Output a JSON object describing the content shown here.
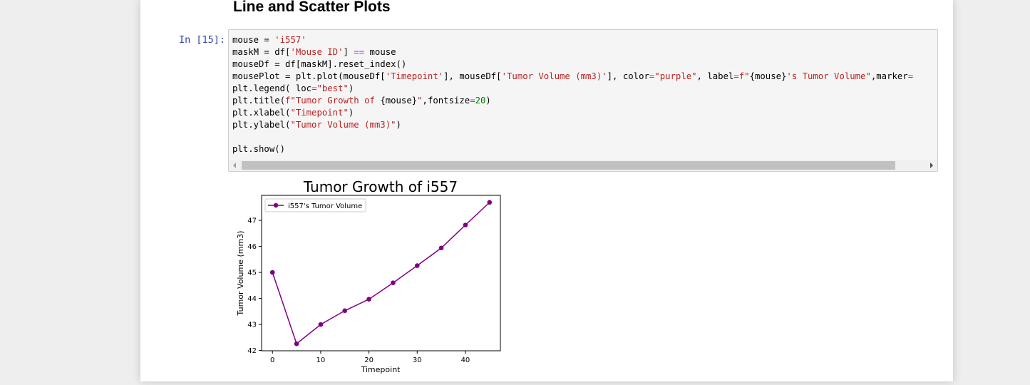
{
  "heading": "Line and Scatter Plots",
  "cell": {
    "prompt": "In [15]:",
    "code_lines": [
      [
        {
          "t": "mouse = "
        },
        {
          "t": "'i557'",
          "c": "str"
        }
      ],
      [
        {
          "t": "maskM = df["
        },
        {
          "t": "'Mouse ID'",
          "c": "str"
        },
        {
          "t": "] "
        },
        {
          "t": "==",
          "c": "op"
        },
        {
          "t": " mouse"
        }
      ],
      [
        {
          "t": "mouseDf = df[maskM].reset_index()"
        }
      ],
      [
        {
          "t": "mousePlot = plt.plot(mouseDf["
        },
        {
          "t": "'Timepoint'",
          "c": "str"
        },
        {
          "t": "], mouseDf["
        },
        {
          "t": "'Tumor Volume (mm3)'",
          "c": "str"
        },
        {
          "t": "], color"
        },
        {
          "t": "=",
          "c": "op"
        },
        {
          "t": "\"purple\"",
          "c": "str"
        },
        {
          "t": ", label"
        },
        {
          "t": "=",
          "c": "op"
        },
        {
          "t": "f\"",
          "c": "str"
        },
        {
          "t": "{mouse}"
        },
        {
          "t": "'s Tumor Volume\"",
          "c": "str"
        },
        {
          "t": ",marker"
        },
        {
          "t": "=",
          "c": "op"
        }
      ],
      [
        {
          "t": "plt.legend( loc"
        },
        {
          "t": "=",
          "c": "op"
        },
        {
          "t": "\"best\"",
          "c": "str"
        },
        {
          "t": ")"
        }
      ],
      [
        {
          "t": "plt.title("
        },
        {
          "t": "f\"Tumor Growth of ",
          "c": "str"
        },
        {
          "t": "{mouse}"
        },
        {
          "t": "\"",
          "c": "str"
        },
        {
          "t": ",fontsize"
        },
        {
          "t": "=",
          "c": "op"
        },
        {
          "t": "20",
          "c": "num"
        },
        {
          "t": ")"
        }
      ],
      [
        {
          "t": "plt.xlabel("
        },
        {
          "t": "\"Timepoint\"",
          "c": "str"
        },
        {
          "t": ")"
        }
      ],
      [
        {
          "t": "plt.ylabel("
        },
        {
          "t": "\"Tumor Volume (mm3)\"",
          "c": "str"
        },
        {
          "t": ")"
        }
      ],
      [
        {
          "t": ""
        }
      ],
      [
        {
          "t": "plt.show()"
        }
      ]
    ]
  },
  "chart_data": {
    "type": "line",
    "title": "Tumor Growth of i557",
    "xlabel": "Timepoint",
    "ylabel": "Tumor Volume (mm3)",
    "x": [
      0,
      5,
      10,
      15,
      20,
      25,
      30,
      35,
      40,
      45
    ],
    "series": [
      {
        "name": "i557's Tumor Volume",
        "color": "#800080",
        "marker": "o",
        "values": [
          45.0,
          42.26,
          43.0,
          43.53,
          43.97,
          44.6,
          45.26,
          45.94,
          46.82,
          47.69
        ]
      }
    ],
    "xticks": [
      0,
      10,
      20,
      30,
      40
    ],
    "yticks": [
      42,
      43,
      44,
      45,
      46,
      47
    ],
    "xlim": [
      -2.25,
      47.25
    ],
    "ylim": [
      41.99,
      47.96
    ],
    "grid": false,
    "legend_loc": "upper left"
  }
}
